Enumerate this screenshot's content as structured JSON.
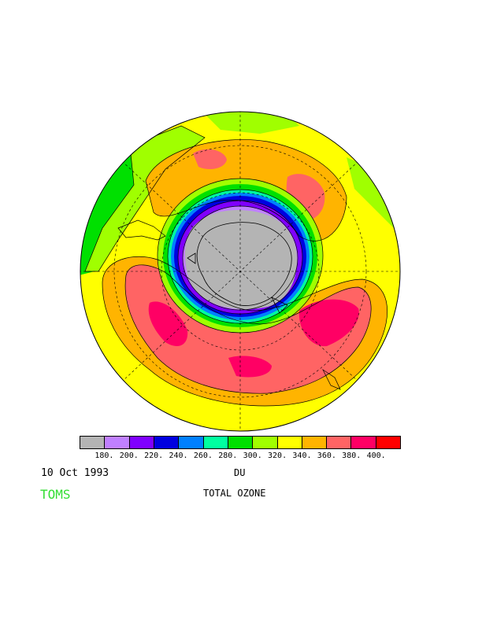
{
  "header": {
    "date": "10 Oct 1993",
    "unit": "DU",
    "brand": "TOMS",
    "product": "TOTAL OZONE"
  },
  "legend": {
    "colors": [
      "#b4b4b4",
      "#c080ff",
      "#8000ff",
      "#0000e0",
      "#0080ff",
      "#00ffa0",
      "#00e000",
      "#a0ff00",
      "#ffff00",
      "#ffb400",
      "#ff6464",
      "#ff0064",
      "#ff0000"
    ],
    "ticks": [
      "180.",
      "200.",
      "220.",
      "240.",
      "260.",
      "280.",
      "300.",
      "320.",
      "340.",
      "360.",
      "380.",
      "400."
    ]
  },
  "map": {
    "projection": "south-polar-stereographic",
    "ozone_hole_color": "#b4b4b4"
  }
}
